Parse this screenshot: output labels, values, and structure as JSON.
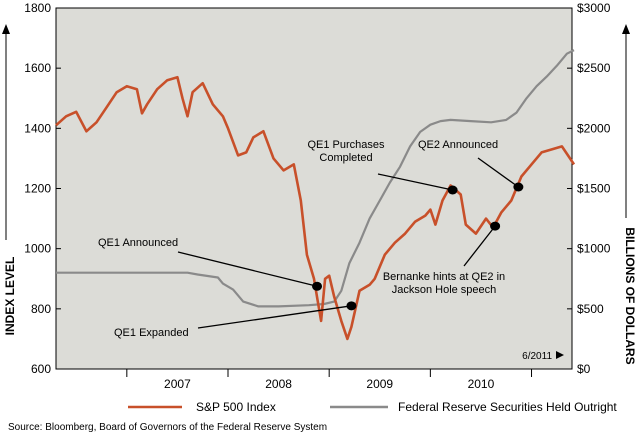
{
  "chart_data": {
    "type": "line",
    "x_range": [
      2006.3,
      2011.4
    ],
    "x_ticks": [
      "2007",
      "2008",
      "2009",
      "2010"
    ],
    "y_left": {
      "label": "INDEX LEVEL",
      "range": [
        600,
        1800
      ],
      "ticks": [
        "600",
        "800",
        "1000",
        "1200",
        "1400",
        "1600",
        "1800"
      ]
    },
    "y_right": {
      "label": "BILLIONS OF DOLLARS",
      "range": [
        0,
        3000
      ],
      "ticks": [
        "$0",
        "$500",
        "$1000",
        "$1500",
        "$2000",
        "$2500",
        "$3000"
      ]
    },
    "grid": false,
    "legend_position": "bottom",
    "date_marker": "6/2011",
    "series": [
      {
        "name": "S&P 500 Index",
        "color": "#c8502a",
        "axis": "left",
        "points": [
          [
            2006.3,
            1410
          ],
          [
            2006.4,
            1440
          ],
          [
            2006.5,
            1455
          ],
          [
            2006.6,
            1390
          ],
          [
            2006.7,
            1420
          ],
          [
            2006.8,
            1470
          ],
          [
            2006.9,
            1520
          ],
          [
            2007.0,
            1540
          ],
          [
            2007.1,
            1530
          ],
          [
            2007.15,
            1450
          ],
          [
            2007.2,
            1480
          ],
          [
            2007.3,
            1530
          ],
          [
            2007.4,
            1560
          ],
          [
            2007.5,
            1570
          ],
          [
            2007.55,
            1500
          ],
          [
            2007.6,
            1440
          ],
          [
            2007.65,
            1520
          ],
          [
            2007.75,
            1550
          ],
          [
            2007.85,
            1480
          ],
          [
            2007.95,
            1440
          ],
          [
            2008.0,
            1400
          ],
          [
            2008.1,
            1310
          ],
          [
            2008.18,
            1320
          ],
          [
            2008.25,
            1370
          ],
          [
            2008.35,
            1390
          ],
          [
            2008.45,
            1300
          ],
          [
            2008.55,
            1260
          ],
          [
            2008.65,
            1280
          ],
          [
            2008.72,
            1160
          ],
          [
            2008.78,
            980
          ],
          [
            2008.85,
            900
          ],
          [
            2008.88,
            840
          ],
          [
            2008.92,
            760
          ],
          [
            2008.96,
            900
          ],
          [
            2009.0,
            910
          ],
          [
            2009.05,
            840
          ],
          [
            2009.12,
            760
          ],
          [
            2009.18,
            700
          ],
          [
            2009.22,
            740
          ],
          [
            2009.3,
            860
          ],
          [
            2009.4,
            880
          ],
          [
            2009.45,
            900
          ],
          [
            2009.55,
            980
          ],
          [
            2009.65,
            1020
          ],
          [
            2009.75,
            1050
          ],
          [
            2009.85,
            1090
          ],
          [
            2009.95,
            1110
          ],
          [
            2010.0,
            1130
          ],
          [
            2010.05,
            1080
          ],
          [
            2010.12,
            1160
          ],
          [
            2010.2,
            1210
          ],
          [
            2010.3,
            1180
          ],
          [
            2010.35,
            1080
          ],
          [
            2010.45,
            1050
          ],
          [
            2010.55,
            1100
          ],
          [
            2010.62,
            1070
          ],
          [
            2010.7,
            1120
          ],
          [
            2010.8,
            1160
          ],
          [
            2010.9,
            1240
          ],
          [
            2011.0,
            1280
          ],
          [
            2011.1,
            1320
          ],
          [
            2011.2,
            1330
          ],
          [
            2011.3,
            1340
          ],
          [
            2011.38,
            1300
          ],
          [
            2011.42,
            1280
          ]
        ]
      },
      {
        "name": "Federal Reserve Securities Held Outright",
        "color": "#8a8a8a",
        "axis": "right",
        "points": [
          [
            2006.3,
            800
          ],
          [
            2007.6,
            800
          ],
          [
            2007.7,
            785
          ],
          [
            2007.9,
            760
          ],
          [
            2007.95,
            710
          ],
          [
            2008.05,
            660
          ],
          [
            2008.15,
            560
          ],
          [
            2008.3,
            520
          ],
          [
            2008.5,
            520
          ],
          [
            2008.8,
            530
          ],
          [
            2008.95,
            540
          ],
          [
            2009.05,
            560
          ],
          [
            2009.12,
            650
          ],
          [
            2009.2,
            880
          ],
          [
            2009.3,
            1050
          ],
          [
            2009.4,
            1250
          ],
          [
            2009.5,
            1400
          ],
          [
            2009.6,
            1550
          ],
          [
            2009.7,
            1680
          ],
          [
            2009.8,
            1850
          ],
          [
            2009.9,
            1970
          ],
          [
            2010.0,
            2030
          ],
          [
            2010.1,
            2060
          ],
          [
            2010.2,
            2070
          ],
          [
            2010.4,
            2060
          ],
          [
            2010.6,
            2050
          ],
          [
            2010.75,
            2070
          ],
          [
            2010.85,
            2130
          ],
          [
            2010.95,
            2250
          ],
          [
            2011.05,
            2350
          ],
          [
            2011.15,
            2430
          ],
          [
            2011.25,
            2520
          ],
          [
            2011.35,
            2620
          ],
          [
            2011.42,
            2650
          ]
        ]
      }
    ],
    "annotations": [
      {
        "text": [
          "QE1 Announced"
        ],
        "x": 2008.88,
        "y": 875
      },
      {
        "text": [
          "QE1 Expanded"
        ],
        "x": 2009.22,
        "y": 810
      },
      {
        "text": [
          "QE1 Purchases",
          "Completed"
        ],
        "x": 2010.22,
        "y": 1195
      },
      {
        "text": [
          "QE2 Announced"
        ],
        "x": 2010.87,
        "y": 1205
      },
      {
        "text": [
          "Bernanke hints at QE2 in",
          "Jackson Hole speech"
        ],
        "x": 2010.64,
        "y": 1075
      }
    ]
  },
  "legend": {
    "sp500_label": "S&P 500 Index",
    "fed_label": "Federal Reserve Securities Held Outright"
  },
  "source_text": "Source:  Bloomberg, Board of Governors of the Federal Reserve System"
}
